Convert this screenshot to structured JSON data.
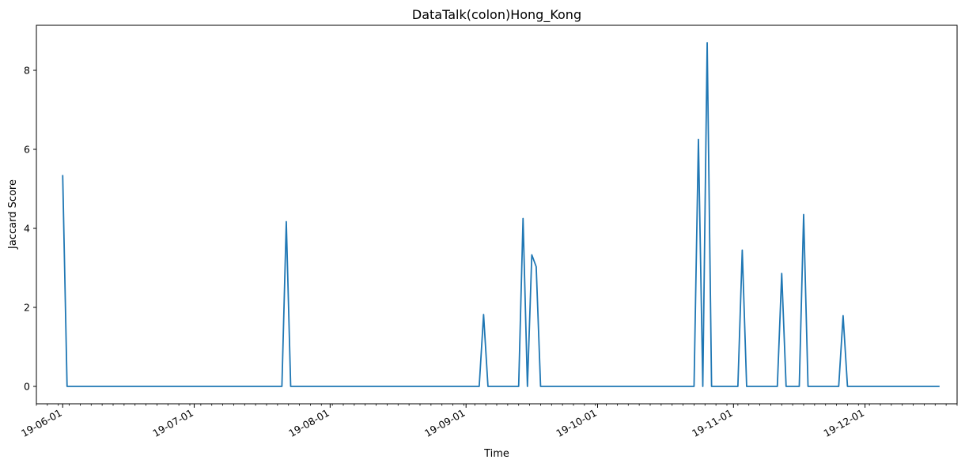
{
  "chart_data": {
    "type": "line",
    "title": "DataTalk(colon)Hong_Kong",
    "xlabel": "Time",
    "ylabel": "Jaccard Score",
    "grid": false,
    "x_tick_labels": [
      "19-06-01",
      "19-07-01",
      "19-08-01",
      "19-09-01",
      "19-10-01",
      "19-11-01",
      "19-12-01"
    ],
    "y_ticks": [
      0,
      2,
      4,
      6,
      8
    ],
    "xlim": [
      "2019-05-26",
      "2019-12-22"
    ],
    "ylim": [
      -0.44,
      9.14
    ],
    "series": [
      {
        "color": "#1f77b4",
        "points": [
          {
            "x": "2019-06-01",
            "y": 5.35
          },
          {
            "x": "2019-06-02",
            "y": 0
          },
          {
            "x": "2019-07-21",
            "y": 0
          },
          {
            "x": "2019-07-22",
            "y": 4.17
          },
          {
            "x": "2019-07-23",
            "y": 0
          },
          {
            "x": "2019-09-04",
            "y": 0
          },
          {
            "x": "2019-09-05",
            "y": 1.82
          },
          {
            "x": "2019-09-06",
            "y": 0
          },
          {
            "x": "2019-09-13",
            "y": 0
          },
          {
            "x": "2019-09-14",
            "y": 4.25
          },
          {
            "x": "2019-09-15",
            "y": 0
          },
          {
            "x": "2019-09-16",
            "y": 3.33
          },
          {
            "x": "2019-09-17",
            "y": 3.03
          },
          {
            "x": "2019-09-18",
            "y": 0
          },
          {
            "x": "2019-10-23",
            "y": 0
          },
          {
            "x": "2019-10-24",
            "y": 6.25
          },
          {
            "x": "2019-10-25",
            "y": 0
          },
          {
            "x": "2019-10-26",
            "y": 8.7
          },
          {
            "x": "2019-10-27",
            "y": 0
          },
          {
            "x": "2019-11-02",
            "y": 0
          },
          {
            "x": "2019-11-03",
            "y": 3.45
          },
          {
            "x": "2019-11-04",
            "y": 0
          },
          {
            "x": "2019-11-11",
            "y": 0
          },
          {
            "x": "2019-11-12",
            "y": 2.86
          },
          {
            "x": "2019-11-13",
            "y": 0
          },
          {
            "x": "2019-11-16",
            "y": 0
          },
          {
            "x": "2019-11-17",
            "y": 4.35
          },
          {
            "x": "2019-11-18",
            "y": 0
          },
          {
            "x": "2019-11-25",
            "y": 0
          },
          {
            "x": "2019-11-26",
            "y": 1.79
          },
          {
            "x": "2019-11-27",
            "y": 0
          },
          {
            "x": "2019-12-18",
            "y": 0
          }
        ]
      }
    ]
  }
}
